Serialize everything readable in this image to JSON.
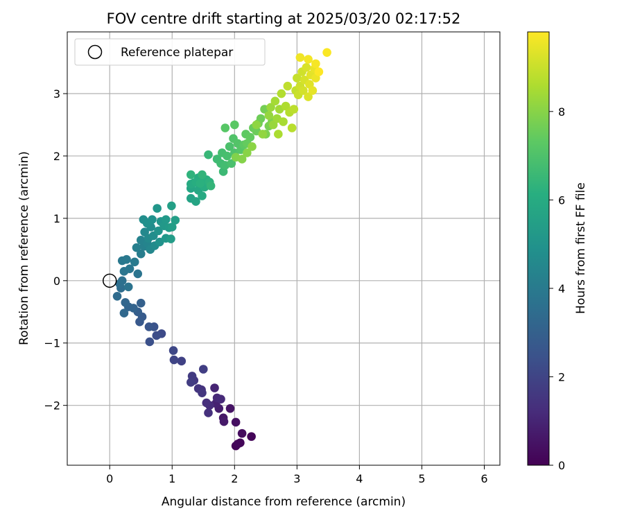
{
  "chart_data": {
    "type": "scatter",
    "title": "FOV centre drift starting at 2025/03/20 02:17:52",
    "xlabel": "Angular distance from reference (arcmin)",
    "ylabel": "Rotation from reference (arcmin)",
    "xlim": [
      -0.68,
      6.25
    ],
    "ylim": [
      -2.96,
      3.99
    ],
    "xticks": [
      0,
      1,
      2,
      3,
      4,
      5,
      6
    ],
    "yticks": [
      -2,
      -1,
      0,
      1,
      2,
      3
    ],
    "grid": true,
    "legend": {
      "placement": "upper-left",
      "entries": [
        "Reference platepar"
      ]
    },
    "reference_point": {
      "x": 0,
      "y": 0
    },
    "colorbar": {
      "label": "Hours from first FF file",
      "colormap": "viridis",
      "range": [
        0,
        9.8
      ],
      "ticks": [
        0,
        2,
        4,
        6,
        8
      ]
    },
    "series": [
      {
        "points": [
          {
            "x": 2.02,
            "y": -2.65,
            "c": 0.1
          },
          {
            "x": 2.27,
            "y": -2.5,
            "c": 0.12
          },
          {
            "x": 2.09,
            "y": -2.6,
            "c": 0.15
          },
          {
            "x": 2.05,
            "y": -2.62,
            "c": 0.18
          },
          {
            "x": 2.12,
            "y": -2.45,
            "c": 0.3
          },
          {
            "x": 2.02,
            "y": -2.27,
            "c": 0.4
          },
          {
            "x": 1.93,
            "y": -2.05,
            "c": 0.5
          },
          {
            "x": 1.82,
            "y": -2.2,
            "c": 0.6
          },
          {
            "x": 1.83,
            "y": -2.26,
            "c": 0.7
          },
          {
            "x": 1.75,
            "y": -2.05,
            "c": 0.8
          },
          {
            "x": 1.7,
            "y": -1.97,
            "c": 0.9
          },
          {
            "x": 1.68,
            "y": -1.72,
            "c": 1.0
          },
          {
            "x": 1.72,
            "y": -1.88,
            "c": 1.1
          },
          {
            "x": 1.78,
            "y": -1.9,
            "c": 1.15
          },
          {
            "x": 1.6,
            "y": -2.0,
            "c": 1.2
          },
          {
            "x": 1.55,
            "y": -1.96,
            "c": 1.3
          },
          {
            "x": 1.58,
            "y": -2.12,
            "c": 1.35
          },
          {
            "x": 1.47,
            "y": -1.75,
            "c": 1.4
          },
          {
            "x": 1.42,
            "y": -1.73,
            "c": 1.5
          },
          {
            "x": 1.48,
            "y": -1.8,
            "c": 1.55
          },
          {
            "x": 1.35,
            "y": -1.6,
            "c": 1.6
          },
          {
            "x": 1.32,
            "y": -1.53,
            "c": 1.7
          },
          {
            "x": 1.3,
            "y": -1.63,
            "c": 1.75
          },
          {
            "x": 1.5,
            "y": -1.42,
            "c": 1.8
          },
          {
            "x": 1.15,
            "y": -1.29,
            "c": 1.9
          },
          {
            "x": 1.03,
            "y": -1.27,
            "c": 2.0
          },
          {
            "x": 1.02,
            "y": -1.12,
            "c": 2.1
          },
          {
            "x": 0.83,
            "y": -0.85,
            "c": 2.2
          },
          {
            "x": 0.75,
            "y": -0.88,
            "c": 2.3
          },
          {
            "x": 0.64,
            "y": -0.98,
            "c": 2.4
          },
          {
            "x": 0.71,
            "y": -0.74,
            "c": 2.5
          },
          {
            "x": 0.63,
            "y": -0.74,
            "c": 2.6
          },
          {
            "x": 0.48,
            "y": -0.66,
            "c": 2.7
          },
          {
            "x": 0.52,
            "y": -0.58,
            "c": 2.8
          },
          {
            "x": 0.45,
            "y": -0.5,
            "c": 2.9
          },
          {
            "x": 0.5,
            "y": -0.36,
            "c": 3.0
          },
          {
            "x": 0.38,
            "y": -0.44,
            "c": 3.1
          },
          {
            "x": 0.3,
            "y": -0.42,
            "c": 3.15
          },
          {
            "x": 0.25,
            "y": -0.35,
            "c": 3.2
          },
          {
            "x": 0.23,
            "y": -0.52,
            "c": 3.3
          },
          {
            "x": 0.12,
            "y": -0.25,
            "c": 3.4
          },
          {
            "x": 0.18,
            "y": -0.12,
            "c": 3.5
          },
          {
            "x": 0.16,
            "y": -0.05,
            "c": 3.55
          },
          {
            "x": 0.2,
            "y": 0.0,
            "c": 3.6
          },
          {
            "x": 0.3,
            "y": -0.1,
            "c": 3.7
          },
          {
            "x": 0.45,
            "y": 0.11,
            "c": 3.75
          },
          {
            "x": 0.23,
            "y": 0.15,
            "c": 3.8
          },
          {
            "x": 0.32,
            "y": 0.19,
            "c": 3.85
          },
          {
            "x": 0.2,
            "y": 0.32,
            "c": 3.9
          },
          {
            "x": 0.27,
            "y": 0.34,
            "c": 3.95
          },
          {
            "x": 0.4,
            "y": 0.3,
            "c": 4.0
          },
          {
            "x": 0.5,
            "y": 0.43,
            "c": 4.1
          },
          {
            "x": 0.43,
            "y": 0.53,
            "c": 4.2
          },
          {
            "x": 0.55,
            "y": 0.55,
            "c": 4.25
          },
          {
            "x": 0.5,
            "y": 0.65,
            "c": 4.3
          },
          {
            "x": 0.6,
            "y": 0.6,
            "c": 4.4
          },
          {
            "x": 0.65,
            "y": 0.5,
            "c": 4.5
          },
          {
            "x": 0.56,
            "y": 0.78,
            "c": 4.55
          },
          {
            "x": 0.62,
            "y": 0.68,
            "c": 4.6
          },
          {
            "x": 0.72,
            "y": 0.56,
            "c": 4.65
          },
          {
            "x": 0.66,
            "y": 0.86,
            "c": 4.7
          },
          {
            "x": 0.7,
            "y": 0.72,
            "c": 4.75
          },
          {
            "x": 0.54,
            "y": 0.98,
            "c": 4.8
          },
          {
            "x": 0.6,
            "y": 0.92,
            "c": 4.85
          },
          {
            "x": 0.68,
            "y": 0.98,
            "c": 4.9
          },
          {
            "x": 0.8,
            "y": 0.62,
            "c": 4.95
          },
          {
            "x": 0.78,
            "y": 0.8,
            "c": 5.0
          },
          {
            "x": 0.82,
            "y": 0.95,
            "c": 5.05
          },
          {
            "x": 0.76,
            "y": 1.16,
            "c": 5.1
          },
          {
            "x": 0.9,
            "y": 0.68,
            "c": 5.15
          },
          {
            "x": 0.87,
            "y": 0.88,
            "c": 5.2
          },
          {
            "x": 0.9,
            "y": 0.98,
            "c": 5.25
          },
          {
            "x": 0.95,
            "y": 0.85,
            "c": 5.3
          },
          {
            "x": 0.98,
            "y": 0.67,
            "c": 5.35
          },
          {
            "x": 1.0,
            "y": 0.86,
            "c": 5.4
          },
          {
            "x": 1.05,
            "y": 0.97,
            "c": 5.45
          },
          {
            "x": 0.99,
            "y": 1.2,
            "c": 5.5
          },
          {
            "x": 1.3,
            "y": 1.32,
            "c": 5.6
          },
          {
            "x": 1.38,
            "y": 1.27,
            "c": 5.7
          },
          {
            "x": 1.3,
            "y": 1.48,
            "c": 5.75
          },
          {
            "x": 1.35,
            "y": 1.57,
            "c": 5.8
          },
          {
            "x": 1.42,
            "y": 1.45,
            "c": 5.85
          },
          {
            "x": 1.48,
            "y": 1.36,
            "c": 5.9
          },
          {
            "x": 1.3,
            "y": 1.55,
            "c": 5.95
          },
          {
            "x": 1.42,
            "y": 1.65,
            "c": 6.0
          },
          {
            "x": 1.52,
            "y": 1.5,
            "c": 6.05
          },
          {
            "x": 1.38,
            "y": 1.58,
            "c": 6.1
          },
          {
            "x": 1.55,
            "y": 1.62,
            "c": 6.15
          },
          {
            "x": 1.45,
            "y": 1.56,
            "c": 6.2
          },
          {
            "x": 1.6,
            "y": 1.58,
            "c": 6.25
          },
          {
            "x": 1.3,
            "y": 1.7,
            "c": 6.3
          },
          {
            "x": 1.48,
            "y": 1.7,
            "c": 6.35
          },
          {
            "x": 1.62,
            "y": 1.52,
            "c": 6.4
          },
          {
            "x": 1.58,
            "y": 2.02,
            "c": 6.5
          },
          {
            "x": 1.82,
            "y": 1.75,
            "c": 6.6
          },
          {
            "x": 1.72,
            "y": 1.95,
            "c": 6.65
          },
          {
            "x": 1.78,
            "y": 1.88,
            "c": 6.7
          },
          {
            "x": 1.85,
            "y": 1.85,
            "c": 6.75
          },
          {
            "x": 1.8,
            "y": 2.05,
            "c": 6.8
          },
          {
            "x": 1.88,
            "y": 2.0,
            "c": 6.85
          },
          {
            "x": 1.95,
            "y": 1.88,
            "c": 6.9
          },
          {
            "x": 1.92,
            "y": 2.15,
            "c": 6.95
          },
          {
            "x": 2.0,
            "y": 2.05,
            "c": 7.0
          },
          {
            "x": 1.98,
            "y": 2.28,
            "c": 7.05
          },
          {
            "x": 2.05,
            "y": 2.2,
            "c": 7.1
          },
          {
            "x": 2.1,
            "y": 2.1,
            "c": 7.15
          },
          {
            "x": 1.85,
            "y": 2.45,
            "c": 7.2
          },
          {
            "x": 2.0,
            "y": 2.5,
            "c": 7.25
          },
          {
            "x": 2.15,
            "y": 2.18,
            "c": 7.3
          },
          {
            "x": 2.18,
            "y": 2.35,
            "c": 7.35
          },
          {
            "x": 2.25,
            "y": 2.3,
            "c": 7.4
          },
          {
            "x": 2.2,
            "y": 2.2,
            "c": 7.45
          },
          {
            "x": 2.3,
            "y": 2.45,
            "c": 7.5
          },
          {
            "x": 2.35,
            "y": 2.4,
            "c": 7.55
          },
          {
            "x": 2.42,
            "y": 2.6,
            "c": 7.6
          },
          {
            "x": 2.38,
            "y": 2.52,
            "c": 7.65
          },
          {
            "x": 2.48,
            "y": 2.75,
            "c": 7.7
          },
          {
            "x": 2.55,
            "y": 2.48,
            "c": 7.75
          },
          {
            "x": 2.5,
            "y": 2.35,
            "c": 7.8
          },
          {
            "x": 2.6,
            "y": 2.55,
            "c": 7.85
          },
          {
            "x": 2.02,
            "y": 1.98,
            "c": 7.9
          },
          {
            "x": 2.12,
            "y": 1.95,
            "c": 7.95
          },
          {
            "x": 2.2,
            "y": 2.05,
            "c": 8.0
          },
          {
            "x": 2.28,
            "y": 2.15,
            "c": 8.05
          },
          {
            "x": 2.35,
            "y": 2.5,
            "c": 8.1
          },
          {
            "x": 2.45,
            "y": 2.35,
            "c": 8.15
          },
          {
            "x": 2.55,
            "y": 2.65,
            "c": 8.2
          },
          {
            "x": 2.62,
            "y": 2.5,
            "c": 8.25
          },
          {
            "x": 2.58,
            "y": 2.78,
            "c": 8.3
          },
          {
            "x": 2.68,
            "y": 2.6,
            "c": 8.35
          },
          {
            "x": 2.72,
            "y": 2.75,
            "c": 8.4
          },
          {
            "x": 2.65,
            "y": 2.88,
            "c": 8.45
          },
          {
            "x": 2.78,
            "y": 2.55,
            "c": 8.5
          },
          {
            "x": 2.7,
            "y": 2.35,
            "c": 8.55
          },
          {
            "x": 2.82,
            "y": 2.8,
            "c": 8.6
          },
          {
            "x": 2.75,
            "y": 3.0,
            "c": 8.65
          },
          {
            "x": 2.88,
            "y": 2.7,
            "c": 8.7
          },
          {
            "x": 2.92,
            "y": 2.45,
            "c": 8.75
          },
          {
            "x": 2.95,
            "y": 2.75,
            "c": 8.8
          },
          {
            "x": 2.85,
            "y": 3.12,
            "c": 8.85
          },
          {
            "x": 2.98,
            "y": 3.05,
            "c": 8.9
          },
          {
            "x": 3.0,
            "y": 3.25,
            "c": 8.95
          },
          {
            "x": 3.02,
            "y": 2.98,
            "c": 9.0
          },
          {
            "x": 3.05,
            "y": 3.12,
            "c": 9.05
          },
          {
            "x": 3.08,
            "y": 3.35,
            "c": 9.1
          },
          {
            "x": 3.1,
            "y": 3.05,
            "c": 9.15
          },
          {
            "x": 3.12,
            "y": 3.22,
            "c": 9.2
          },
          {
            "x": 3.15,
            "y": 3.42,
            "c": 9.25
          },
          {
            "x": 3.18,
            "y": 2.95,
            "c": 9.3
          },
          {
            "x": 3.2,
            "y": 3.15,
            "c": 9.35
          },
          {
            "x": 3.22,
            "y": 3.3,
            "c": 9.4
          },
          {
            "x": 3.25,
            "y": 3.05,
            "c": 9.45
          },
          {
            "x": 3.28,
            "y": 3.4,
            "c": 9.5
          },
          {
            "x": 3.3,
            "y": 3.25,
            "c": 9.55
          },
          {
            "x": 3.05,
            "y": 3.58,
            "c": 9.6
          },
          {
            "x": 3.18,
            "y": 3.55,
            "c": 9.65
          },
          {
            "x": 3.3,
            "y": 3.48,
            "c": 9.7
          },
          {
            "x": 3.48,
            "y": 3.66,
            "c": 9.75
          },
          {
            "x": 3.35,
            "y": 3.35,
            "c": 9.8
          }
        ]
      }
    ]
  }
}
